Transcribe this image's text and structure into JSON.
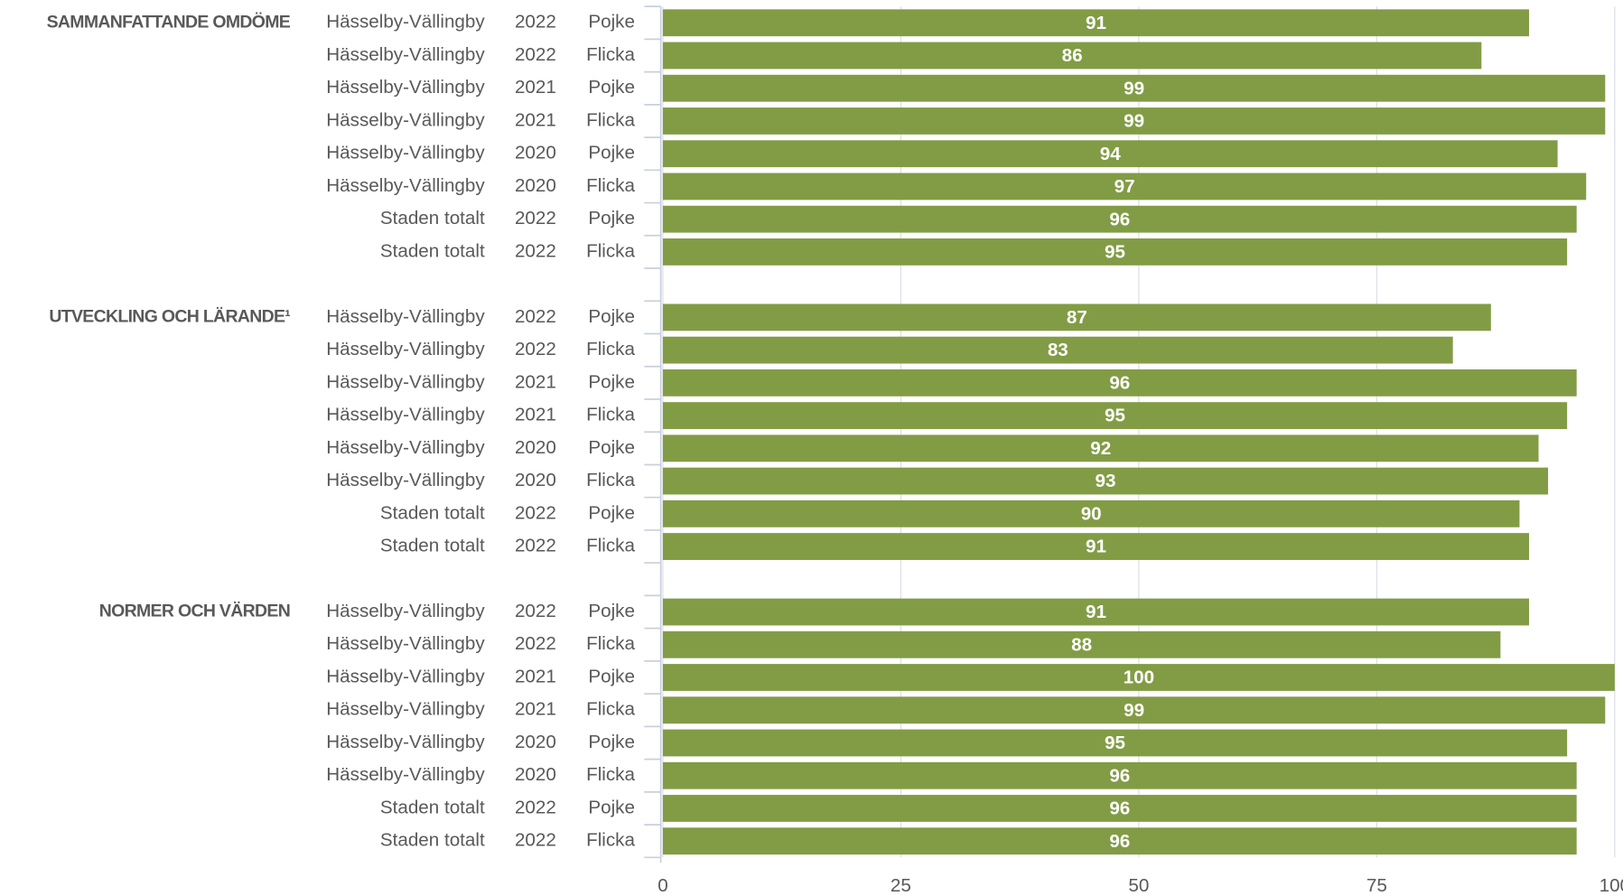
{
  "chart_data": {
    "type": "bar",
    "orientation": "horizontal",
    "color": "#829c45",
    "grid": true,
    "xlim": [
      0,
      100
    ],
    "xticks": [
      0,
      25,
      50,
      75,
      100
    ],
    "groups": [
      {
        "name": "SAMMANFATTANDE OMDÖME",
        "categories": [
          [
            "Hässelby-Vällingby",
            "2022",
            "Pojke"
          ],
          [
            "Hässelby-Vällingby",
            "2022",
            "Flicka"
          ],
          [
            "Hässelby-Vällingby",
            "2021",
            "Pojke"
          ],
          [
            "Hässelby-Vällingby",
            "2021",
            "Flicka"
          ],
          [
            "Hässelby-Vällingby",
            "2020",
            "Pojke"
          ],
          [
            "Hässelby-Vällingby",
            "2020",
            "Flicka"
          ],
          [
            "Staden totalt",
            "2022",
            "Pojke"
          ],
          [
            "Staden totalt",
            "2022",
            "Flicka"
          ]
        ],
        "values": [
          91,
          86,
          99,
          99,
          94,
          97,
          96,
          95
        ]
      },
      {
        "name": "UTVECKLING OCH LÄRANDE¹",
        "categories": [
          [
            "Hässelby-Vällingby",
            "2022",
            "Pojke"
          ],
          [
            "Hässelby-Vällingby",
            "2022",
            "Flicka"
          ],
          [
            "Hässelby-Vällingby",
            "2021",
            "Pojke"
          ],
          [
            "Hässelby-Vällingby",
            "2021",
            "Flicka"
          ],
          [
            "Hässelby-Vällingby",
            "2020",
            "Pojke"
          ],
          [
            "Hässelby-Vällingby",
            "2020",
            "Flicka"
          ],
          [
            "Staden totalt",
            "2022",
            "Pojke"
          ],
          [
            "Staden totalt",
            "2022",
            "Flicka"
          ]
        ],
        "values": [
          87,
          83,
          96,
          95,
          92,
          93,
          90,
          91
        ]
      },
      {
        "name": "NORMER OCH VÄRDEN",
        "categories": [
          [
            "Hässelby-Vällingby",
            "2022",
            "Pojke"
          ],
          [
            "Hässelby-Vällingby",
            "2022",
            "Flicka"
          ],
          [
            "Hässelby-Vällingby",
            "2021",
            "Pojke"
          ],
          [
            "Hässelby-Vällingby",
            "2021",
            "Flicka"
          ],
          [
            "Hässelby-Vällingby",
            "2020",
            "Pojke"
          ],
          [
            "Hässelby-Vällingby",
            "2020",
            "Flicka"
          ],
          [
            "Staden totalt",
            "2022",
            "Pojke"
          ],
          [
            "Staden totalt",
            "2022",
            "Flicka"
          ]
        ],
        "values": [
          91,
          88,
          100,
          99,
          95,
          96,
          96,
          96
        ]
      }
    ]
  }
}
